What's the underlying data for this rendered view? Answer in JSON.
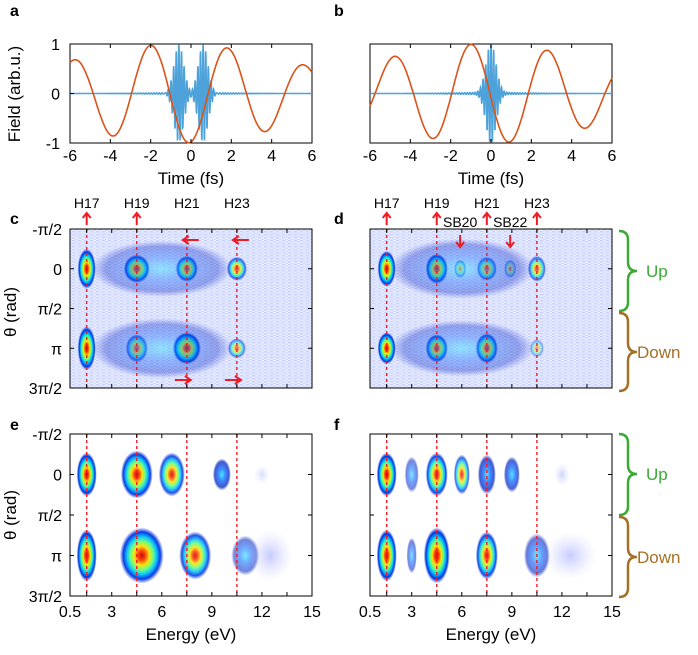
{
  "panels": [
    {
      "id": "a",
      "label": "a",
      "type": "line",
      "xlabel": "Time (fs)",
      "ylabel": "Field (arb.u.)",
      "xlim": [
        -6,
        6
      ],
      "ylim": [
        -1,
        1
      ],
      "xticks": [
        "-6",
        "-4",
        "-2",
        "0",
        "2",
        "4",
        "6"
      ],
      "yticks": [
        "-1",
        "0",
        "1"
      ],
      "series": [
        {
          "kind": "driver",
          "color": "#d9541a",
          "period_fs": 3.8,
          "peak_time_fs": -2.0
        },
        {
          "kind": "attosecond-pulse-train",
          "color": "#4da2da",
          "burst_times_fs": [
            -0.6,
            0.6
          ]
        }
      ]
    },
    {
      "id": "b",
      "label": "b",
      "type": "line",
      "xlabel": "Time (fs)",
      "ylabel": "",
      "xlim": [
        -6,
        6
      ],
      "ylim": [
        -1,
        1
      ],
      "xticks": [
        "-6",
        "-4",
        "-2",
        "0",
        "2",
        "4",
        "6"
      ],
      "yticks": [],
      "series": [
        {
          "kind": "driver",
          "color": "#d9541a",
          "period_fs": 3.8,
          "peak_time_fs": -1.0
        },
        {
          "kind": "attosecond-pulse-train",
          "color": "#4da2da",
          "burst_times_fs": [
            0.0
          ]
        }
      ]
    },
    {
      "id": "c",
      "label": "c",
      "type": "heatmap",
      "xlabel": "",
      "ylabel": "θ (rad)",
      "xlim": [
        0.5,
        15
      ],
      "ylim": [
        "-π/2",
        "3π/2"
      ],
      "yticks": [
        "-π/2",
        "0",
        "π/2",
        "π",
        "3π/2"
      ],
      "harmonics": [
        {
          "label": "H17",
          "energy_eV": 1.5
        },
        {
          "label": "H19",
          "energy_eV": 4.5
        },
        {
          "label": "H21",
          "energy_eV": 7.5
        },
        {
          "label": "H23",
          "energy_eV": 10.5
        }
      ],
      "arrows": [
        {
          "energy_eV": 1.5,
          "direction": "up",
          "position": "top"
        },
        {
          "energy_eV": 4.5,
          "direction": "up",
          "position": "top"
        },
        {
          "energy_eV": 7.5,
          "direction": "left",
          "position": "top"
        },
        {
          "energy_eV": 10.5,
          "direction": "left",
          "position": "top"
        },
        {
          "energy_eV": 7.5,
          "direction": "right",
          "position": "bottom"
        },
        {
          "energy_eV": 10.5,
          "direction": "right",
          "position": "bottom"
        }
      ]
    },
    {
      "id": "d",
      "label": "d",
      "type": "heatmap",
      "xlabel": "",
      "ylabel": "",
      "xlim": [
        0.5,
        15
      ],
      "ylim": [
        "-π/2",
        "3π/2"
      ],
      "yticks": [],
      "harmonics": [
        {
          "label": "H17",
          "energy_eV": 1.5
        },
        {
          "label": "H19",
          "energy_eV": 4.5
        },
        {
          "label": "H21",
          "energy_eV": 7.5
        },
        {
          "label": "H23",
          "energy_eV": 10.5
        }
      ],
      "sidebands": [
        {
          "label": "SB20",
          "energy_eV": 5.9
        },
        {
          "label": "SB22",
          "energy_eV": 8.9
        }
      ]
    },
    {
      "id": "e",
      "label": "e",
      "type": "heatmap",
      "xlabel": "Energy (eV)",
      "ylabel": "θ (rad)",
      "xlim": [
        0.5,
        15
      ],
      "xticks": [
        "0.5",
        "3",
        "6",
        "9",
        "12",
        "15"
      ],
      "ylim": [
        "-π/2",
        "3π/2"
      ],
      "yticks": [
        "-π/2",
        "0",
        "π/2",
        "π",
        "3π/2"
      ]
    },
    {
      "id": "f",
      "label": "f",
      "type": "heatmap",
      "xlabel": "Energy (eV)",
      "ylabel": "",
      "xlim": [
        0.5,
        15
      ],
      "xticks": [
        "0.5",
        "3",
        "6",
        "9",
        "12",
        "15"
      ],
      "ylim": [
        "-π/2",
        "3π/2"
      ],
      "yticks": []
    }
  ],
  "braces": [
    {
      "row": "d",
      "up_label": "Up",
      "down_label": "Down"
    },
    {
      "row": "f",
      "up_label": "Up",
      "down_label": "Down"
    }
  ],
  "colors": {
    "up": "#3aaa35",
    "down": "#a57025",
    "arrow": "#ee1c25",
    "driver": "#d9541a",
    "apt": "#4da2da"
  },
  "chart_data": [
    {
      "panel": "a",
      "type": "line",
      "xlabel": "Time (fs)",
      "ylabel": "Field (arb.u.)",
      "xlim": [
        -6,
        6
      ],
      "ylim": [
        -1,
        1
      ],
      "series": [
        {
          "values": "IR driver: cosine-like oscillation, period ≈ 3.8 fs, maximum ≈ 1 at t ≈ -2 fs and t ≈ 2 fs, minima ≈ -1 near t ≈ -0.3 fs"
        },
        {
          "values": "attosecond pulse train: two bursts centered at t ≈ -0.6 fs and t ≈ 0.6 fs"
        }
      ]
    },
    {
      "panel": "b",
      "type": "line",
      "xlabel": "Time (fs)",
      "xlim": [
        -6,
        6
      ],
      "ylim": [
        -1,
        1
      ],
      "series": [
        {
          "values": "IR driver: period ≈ 3.8 fs, maxima at t ≈ -1 fs and t ≈ 2.8 fs"
        },
        {
          "values": "single attosecond burst centered at t ≈ 0 fs"
        }
      ]
    },
    {
      "panel": "c",
      "type": "heatmap",
      "x_harmonics_eV": [
        1.5,
        4.5,
        7.5,
        10.5
      ],
      "theta_rows": [
        "0",
        "π"
      ]
    },
    {
      "panel": "d",
      "type": "heatmap",
      "x_harmonics_eV": [
        1.5,
        4.5,
        7.5,
        10.5
      ],
      "x_sidebands_eV": [
        5.9,
        8.9
      ],
      "theta_rows": [
        "0",
        "π"
      ]
    },
    {
      "panel": "e",
      "type": "heatmap",
      "x_harmonics_eV": [
        1.5,
        4.5,
        7.5,
        10.5
      ],
      "theta_rows": [
        "0",
        "π"
      ]
    },
    {
      "panel": "f",
      "type": "heatmap",
      "x_harmonics_eV": [
        1.5,
        4.5,
        7.5,
        10.5
      ],
      "theta_rows": [
        "0",
        "π"
      ]
    }
  ]
}
